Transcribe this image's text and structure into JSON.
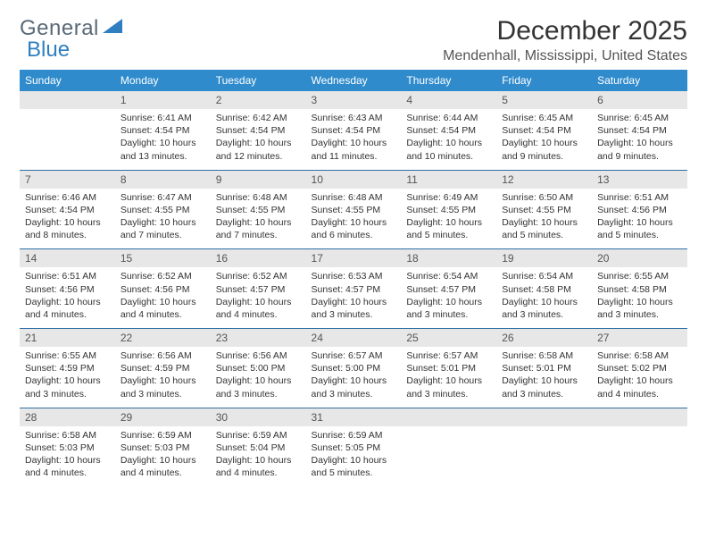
{
  "brand": {
    "part1": "General",
    "part2": "Blue"
  },
  "title": "December 2025",
  "location": "Mendenhall, Mississippi, United States",
  "colors": {
    "header_bg": "#2f8bcc",
    "header_text": "#ffffff",
    "daynum_bg": "#e7e7e7",
    "rule": "#2f6fa6",
    "brand_gray": "#5a6a78",
    "brand_blue": "#2f7fc0"
  },
  "weekdays": [
    "Sunday",
    "Monday",
    "Tuesday",
    "Wednesday",
    "Thursday",
    "Friday",
    "Saturday"
  ],
  "weeks": [
    {
      "nums": [
        "",
        "1",
        "2",
        "3",
        "4",
        "5",
        "6"
      ],
      "cells": [
        {},
        {
          "sr": "Sunrise: 6:41 AM",
          "ss": "Sunset: 4:54 PM",
          "dl": "Daylight: 10 hours and 13 minutes."
        },
        {
          "sr": "Sunrise: 6:42 AM",
          "ss": "Sunset: 4:54 PM",
          "dl": "Daylight: 10 hours and 12 minutes."
        },
        {
          "sr": "Sunrise: 6:43 AM",
          "ss": "Sunset: 4:54 PM",
          "dl": "Daylight: 10 hours and 11 minutes."
        },
        {
          "sr": "Sunrise: 6:44 AM",
          "ss": "Sunset: 4:54 PM",
          "dl": "Daylight: 10 hours and 10 minutes."
        },
        {
          "sr": "Sunrise: 6:45 AM",
          "ss": "Sunset: 4:54 PM",
          "dl": "Daylight: 10 hours and 9 minutes."
        },
        {
          "sr": "Sunrise: 6:45 AM",
          "ss": "Sunset: 4:54 PM",
          "dl": "Daylight: 10 hours and 9 minutes."
        }
      ]
    },
    {
      "nums": [
        "7",
        "8",
        "9",
        "10",
        "11",
        "12",
        "13"
      ],
      "cells": [
        {
          "sr": "Sunrise: 6:46 AM",
          "ss": "Sunset: 4:54 PM",
          "dl": "Daylight: 10 hours and 8 minutes."
        },
        {
          "sr": "Sunrise: 6:47 AM",
          "ss": "Sunset: 4:55 PM",
          "dl": "Daylight: 10 hours and 7 minutes."
        },
        {
          "sr": "Sunrise: 6:48 AM",
          "ss": "Sunset: 4:55 PM",
          "dl": "Daylight: 10 hours and 7 minutes."
        },
        {
          "sr": "Sunrise: 6:48 AM",
          "ss": "Sunset: 4:55 PM",
          "dl": "Daylight: 10 hours and 6 minutes."
        },
        {
          "sr": "Sunrise: 6:49 AM",
          "ss": "Sunset: 4:55 PM",
          "dl": "Daylight: 10 hours and 5 minutes."
        },
        {
          "sr": "Sunrise: 6:50 AM",
          "ss": "Sunset: 4:55 PM",
          "dl": "Daylight: 10 hours and 5 minutes."
        },
        {
          "sr": "Sunrise: 6:51 AM",
          "ss": "Sunset: 4:56 PM",
          "dl": "Daylight: 10 hours and 5 minutes."
        }
      ]
    },
    {
      "nums": [
        "14",
        "15",
        "16",
        "17",
        "18",
        "19",
        "20"
      ],
      "cells": [
        {
          "sr": "Sunrise: 6:51 AM",
          "ss": "Sunset: 4:56 PM",
          "dl": "Daylight: 10 hours and 4 minutes."
        },
        {
          "sr": "Sunrise: 6:52 AM",
          "ss": "Sunset: 4:56 PM",
          "dl": "Daylight: 10 hours and 4 minutes."
        },
        {
          "sr": "Sunrise: 6:52 AM",
          "ss": "Sunset: 4:57 PM",
          "dl": "Daylight: 10 hours and 4 minutes."
        },
        {
          "sr": "Sunrise: 6:53 AM",
          "ss": "Sunset: 4:57 PM",
          "dl": "Daylight: 10 hours and 3 minutes."
        },
        {
          "sr": "Sunrise: 6:54 AM",
          "ss": "Sunset: 4:57 PM",
          "dl": "Daylight: 10 hours and 3 minutes."
        },
        {
          "sr": "Sunrise: 6:54 AM",
          "ss": "Sunset: 4:58 PM",
          "dl": "Daylight: 10 hours and 3 minutes."
        },
        {
          "sr": "Sunrise: 6:55 AM",
          "ss": "Sunset: 4:58 PM",
          "dl": "Daylight: 10 hours and 3 minutes."
        }
      ]
    },
    {
      "nums": [
        "21",
        "22",
        "23",
        "24",
        "25",
        "26",
        "27"
      ],
      "cells": [
        {
          "sr": "Sunrise: 6:55 AM",
          "ss": "Sunset: 4:59 PM",
          "dl": "Daylight: 10 hours and 3 minutes."
        },
        {
          "sr": "Sunrise: 6:56 AM",
          "ss": "Sunset: 4:59 PM",
          "dl": "Daylight: 10 hours and 3 minutes."
        },
        {
          "sr": "Sunrise: 6:56 AM",
          "ss": "Sunset: 5:00 PM",
          "dl": "Daylight: 10 hours and 3 minutes."
        },
        {
          "sr": "Sunrise: 6:57 AM",
          "ss": "Sunset: 5:00 PM",
          "dl": "Daylight: 10 hours and 3 minutes."
        },
        {
          "sr": "Sunrise: 6:57 AM",
          "ss": "Sunset: 5:01 PM",
          "dl": "Daylight: 10 hours and 3 minutes."
        },
        {
          "sr": "Sunrise: 6:58 AM",
          "ss": "Sunset: 5:01 PM",
          "dl": "Daylight: 10 hours and 3 minutes."
        },
        {
          "sr": "Sunrise: 6:58 AM",
          "ss": "Sunset: 5:02 PM",
          "dl": "Daylight: 10 hours and 4 minutes."
        }
      ]
    },
    {
      "nums": [
        "28",
        "29",
        "30",
        "31",
        "",
        "",
        ""
      ],
      "cells": [
        {
          "sr": "Sunrise: 6:58 AM",
          "ss": "Sunset: 5:03 PM",
          "dl": "Daylight: 10 hours and 4 minutes."
        },
        {
          "sr": "Sunrise: 6:59 AM",
          "ss": "Sunset: 5:03 PM",
          "dl": "Daylight: 10 hours and 4 minutes."
        },
        {
          "sr": "Sunrise: 6:59 AM",
          "ss": "Sunset: 5:04 PM",
          "dl": "Daylight: 10 hours and 4 minutes."
        },
        {
          "sr": "Sunrise: 6:59 AM",
          "ss": "Sunset: 5:05 PM",
          "dl": "Daylight: 10 hours and 5 minutes."
        },
        {},
        {},
        {}
      ]
    }
  ]
}
